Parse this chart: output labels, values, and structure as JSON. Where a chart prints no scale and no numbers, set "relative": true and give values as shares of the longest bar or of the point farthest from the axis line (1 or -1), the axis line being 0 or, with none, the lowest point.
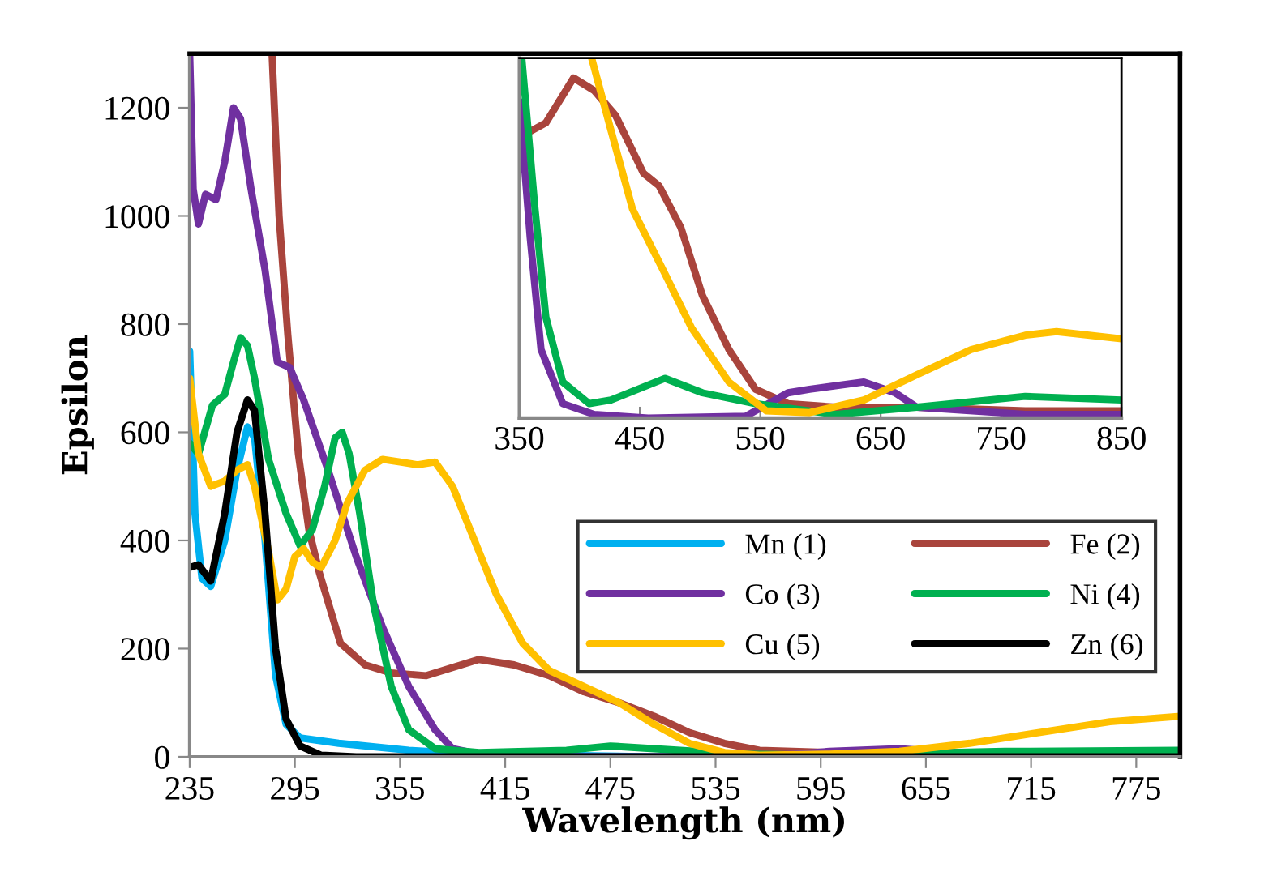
{
  "chart_data": [
    {
      "type": "line",
      "xlabel": "Wavelength (nm)",
      "ylabel": "Epsilon",
      "xlim": [
        235,
        800
      ],
      "ylim": [
        0,
        1300
      ],
      "xticks": [
        235,
        295,
        355,
        415,
        475,
        535,
        595,
        655,
        715,
        775
      ],
      "yticks": [
        0,
        200,
        400,
        600,
        800,
        1000,
        1200
      ],
      "grid": false,
      "legend": "bottom right",
      "series": [
        {
          "name": "Mn (1)",
          "color": "#00b0f0",
          "x": [
            235,
            238,
            242,
            247,
            255,
            262,
            268,
            272,
            278,
            284,
            290,
            298,
            320,
            360,
            400,
            500,
            800
          ],
          "values": [
            750,
            450,
            330,
            315,
            400,
            530,
            610,
            590,
            400,
            150,
            60,
            35,
            25,
            12,
            5,
            0,
            0
          ]
        },
        {
          "name": "Fe (2)",
          "color": "#a9443c",
          "x": [
            282,
            286,
            291,
            297,
            303,
            309,
            321,
            335,
            350,
            370,
            385,
            400,
            420,
            440,
            460,
            480,
            500,
            520,
            540,
            560,
            600,
            700,
            800
          ],
          "values": [
            1300,
            1000,
            780,
            560,
            420,
            340,
            210,
            170,
            155,
            150,
            165,
            180,
            170,
            150,
            120,
            100,
            75,
            45,
            25,
            12,
            8,
            5,
            5
          ]
        },
        {
          "name": "Co (3)",
          "color": "#7030a0",
          "x": [
            235,
            237,
            240,
            244,
            250,
            255,
            260,
            264,
            270,
            278,
            285,
            292,
            300,
            315,
            330,
            345,
            360,
            375,
            385,
            400,
            450,
            550,
            580,
            600,
            640,
            660,
            700,
            800
          ],
          "values": [
            1300,
            1050,
            985,
            1040,
            1030,
            1100,
            1200,
            1180,
            1050,
            900,
            730,
            720,
            660,
            520,
            370,
            240,
            130,
            50,
            15,
            5,
            0,
            0,
            5,
            10,
            15,
            10,
            3,
            3
          ]
        },
        {
          "name": "Ni (4)",
          "color": "#00b050",
          "x": [
            235,
            240,
            248,
            255,
            260,
            264,
            268,
            272,
            280,
            290,
            298,
            305,
            312,
            318,
            322,
            326,
            332,
            340,
            350,
            360,
            375,
            400,
            450,
            475,
            500,
            550,
            600,
            700,
            800
          ],
          "values": [
            580,
            560,
            650,
            670,
            730,
            775,
            760,
            700,
            550,
            450,
            390,
            420,
            500,
            590,
            600,
            560,
            450,
            280,
            130,
            50,
            15,
            8,
            12,
            20,
            15,
            5,
            3,
            10,
            12
          ]
        },
        {
          "name": "Cu (5)",
          "color": "#ffc000",
          "x": [
            235,
            240,
            247,
            255,
            262,
            268,
            272,
            280,
            285,
            290,
            295,
            300,
            305,
            310,
            318,
            325,
            335,
            345,
            355,
            365,
            375,
            385,
            395,
            410,
            425,
            440,
            460,
            480,
            500,
            520,
            540,
            560,
            600,
            640,
            680,
            720,
            760,
            800
          ],
          "values": [
            700,
            560,
            500,
            510,
            530,
            540,
            500,
            380,
            290,
            310,
            370,
            385,
            360,
            350,
            400,
            470,
            530,
            550,
            545,
            540,
            545,
            500,
            420,
            300,
            210,
            160,
            130,
            100,
            60,
            25,
            8,
            3,
            5,
            10,
            25,
            45,
            65,
            75
          ]
        },
        {
          "name": "Zn (6)",
          "color": "#000000",
          "x": [
            235,
            240,
            247,
            255,
            262,
            268,
            272,
            278,
            284,
            290,
            298,
            310,
            330,
            800
          ],
          "values": [
            350,
            355,
            325,
            450,
            600,
            660,
            640,
            450,
            200,
            70,
            20,
            3,
            0,
            0
          ]
        }
      ]
    },
    {
      "type": "line",
      "relative": true,
      "xlim": [
        350,
        850
      ],
      "xticks": [
        350,
        450,
        550,
        650,
        750,
        850
      ],
      "tick_labels": "x",
      "grid": false,
      "series": [
        {
          "color": "#a9443c",
          "x": [
            350,
            372,
            395,
            412,
            430,
            453,
            466,
            484,
            502,
            524,
            546,
            573,
            613,
            680,
            770,
            850
          ],
          "values": [
            0.78,
            0.82,
            0.945,
            0.91,
            0.84,
            0.68,
            0.645,
            0.53,
            0.34,
            0.19,
            0.08,
            0.04,
            0.03,
            0.03,
            0.02,
            0.02
          ]
        },
        {
          "color": "#7030a0",
          "x": [
            350,
            359,
            368,
            386,
            412,
            457,
            538,
            573,
            591,
            636,
            662,
            680,
            770,
            850
          ],
          "values": [
            0.88,
            0.5,
            0.19,
            0.04,
            0.01,
            0,
            0.005,
            0.07,
            0.08,
            0.1,
            0.07,
            0.03,
            0.01,
            0.01
          ]
        },
        {
          "color": "#00b050",
          "x": [
            352,
            363,
            372,
            386,
            408,
            426,
            471,
            502,
            546,
            613,
            680,
            770,
            850
          ],
          "values": [
            1.0,
            0.58,
            0.28,
            0.1,
            0.04,
            0.05,
            0.11,
            0.07,
            0.04,
            0.01,
            0.03,
            0.06,
            0.05
          ]
        },
        {
          "color": "#ffc000",
          "x": [
            410,
            426,
            444,
            471,
            493,
            524,
            555,
            591,
            636,
            680,
            725,
            770,
            796,
            850
          ],
          "values": [
            1.0,
            0.8,
            0.58,
            0.4,
            0.25,
            0.1,
            0.02,
            0.015,
            0.05,
            0.12,
            0.19,
            0.23,
            0.24,
            0.22
          ]
        }
      ]
    }
  ]
}
